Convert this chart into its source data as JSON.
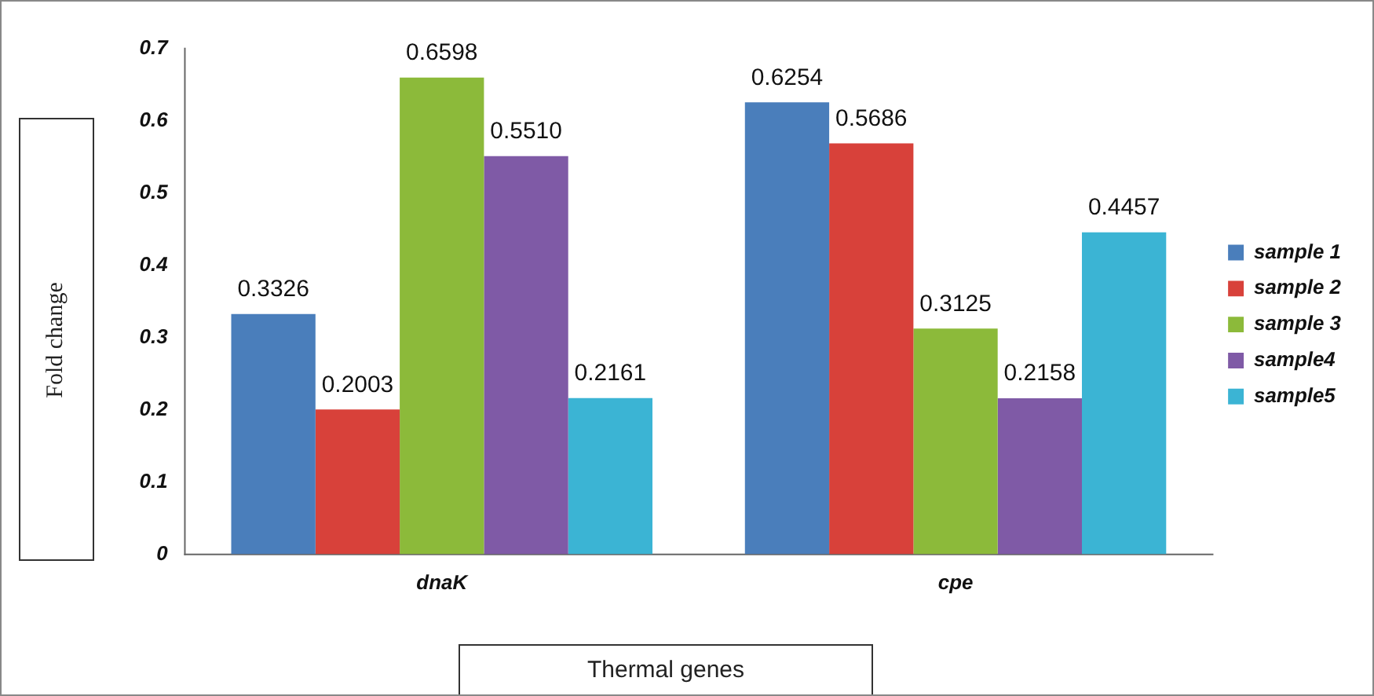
{
  "chart_data": {
    "type": "bar",
    "xlabel": "Thermal genes",
    "ylabel": "Fold change",
    "categories": [
      "dnaK",
      "cpe"
    ],
    "series": [
      {
        "name": "sample 1",
        "color": "#4a7ebb",
        "values": [
          0.3326,
          0.6254
        ],
        "value_labels": [
          "0.3326",
          "0.6254"
        ]
      },
      {
        "name": "sample 2",
        "color": "#d8413a",
        "values": [
          0.2003,
          0.5686
        ],
        "value_labels": [
          "0.2003",
          "0.5686"
        ]
      },
      {
        "name": "sample 3",
        "color": "#8cba3a",
        "values": [
          0.6598,
          0.3125
        ],
        "value_labels": [
          "0.6598",
          "0.3125"
        ]
      },
      {
        "name": "sample4",
        "color": "#7f5aa6",
        "values": [
          0.551,
          0.2158
        ],
        "value_labels": [
          "0.5510",
          "0.2158"
        ]
      },
      {
        "name": "sample5",
        "color": "#3bb4d4",
        "values": [
          0.2161,
          0.4457
        ],
        "value_labels": [
          "0.2161",
          "0.4457"
        ]
      }
    ],
    "ylim": [
      0,
      0.7
    ],
    "yticks": [
      0,
      0.1,
      0.2,
      0.3,
      0.4,
      0.5,
      0.6,
      0.7
    ],
    "grid": false,
    "legend": "right"
  }
}
